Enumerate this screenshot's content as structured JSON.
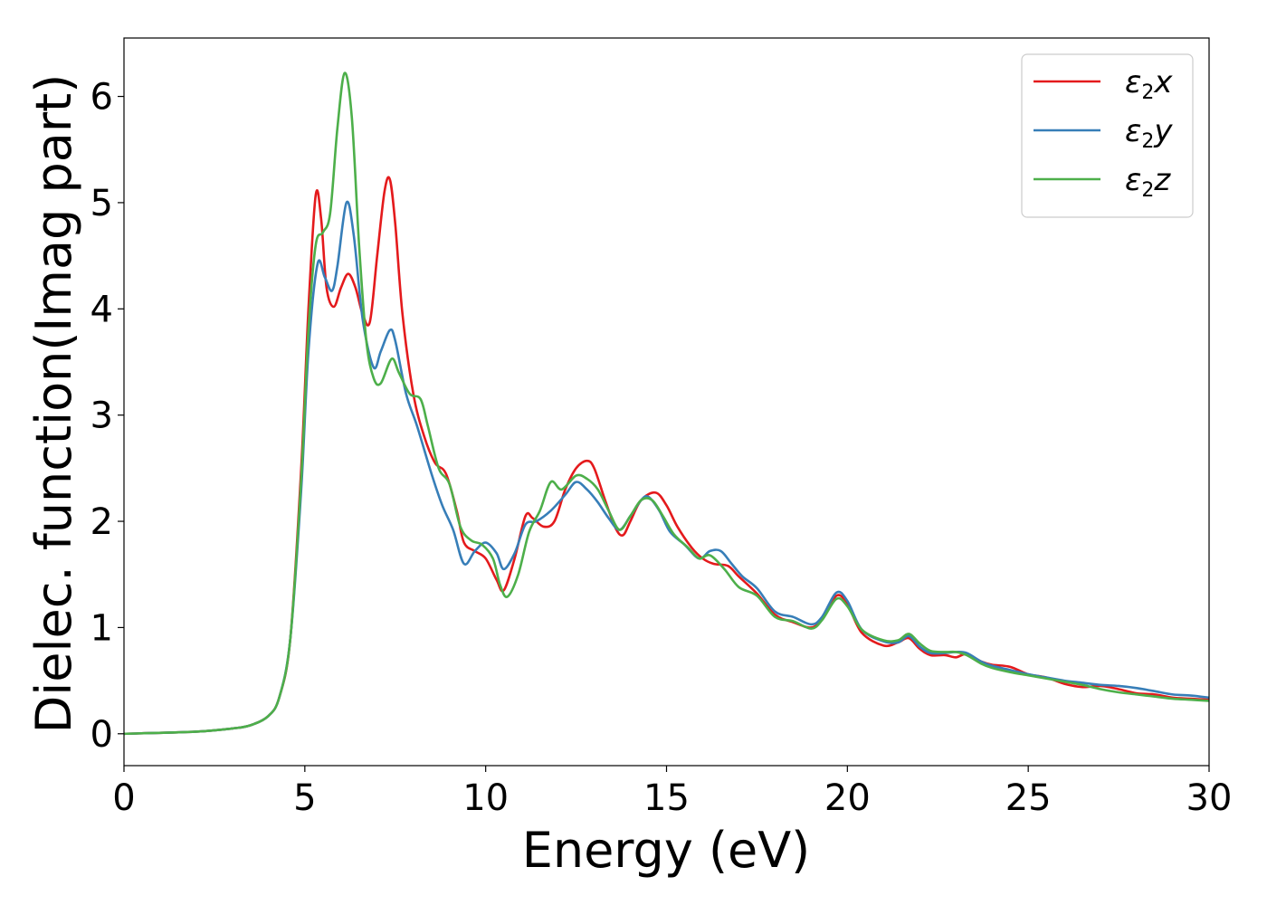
{
  "chart_data": {
    "type": "line",
    "xlabel": "Energy (eV)",
    "ylabel": "Dielec. function(Imag part)",
    "xlim": [
      0,
      30
    ],
    "ylim": [
      -0.3,
      6.55
    ],
    "xticks": [
      0,
      5,
      10,
      15,
      20,
      25,
      30
    ],
    "yticks": [
      0,
      1,
      2,
      3,
      4,
      5,
      6
    ],
    "grid": false,
    "legend_position": "top-right",
    "series": [
      {
        "name": "ε2x",
        "legend": {
          "symbol": "ε",
          "sub": "2",
          "axis": "x"
        },
        "color": "#e41a1c",
        "points": [
          [
            0,
            0
          ],
          [
            2,
            0.02
          ],
          [
            3,
            0.05
          ],
          [
            3.5,
            0.08
          ],
          [
            4,
            0.17
          ],
          [
            4.3,
            0.35
          ],
          [
            4.6,
            0.9
          ],
          [
            4.9,
            2.5
          ],
          [
            5.1,
            4.0
          ],
          [
            5.3,
            5.07
          ],
          [
            5.45,
            4.85
          ],
          [
            5.6,
            4.2
          ],
          [
            5.8,
            4.02
          ],
          [
            6.0,
            4.2
          ],
          [
            6.2,
            4.33
          ],
          [
            6.4,
            4.2
          ],
          [
            6.6,
            3.95
          ],
          [
            6.8,
            3.88
          ],
          [
            7.0,
            4.5
          ],
          [
            7.2,
            5.1
          ],
          [
            7.35,
            5.22
          ],
          [
            7.5,
            4.8
          ],
          [
            7.7,
            3.95
          ],
          [
            8.0,
            3.2
          ],
          [
            8.3,
            2.8
          ],
          [
            8.6,
            2.55
          ],
          [
            8.9,
            2.45
          ],
          [
            9.2,
            2.1
          ],
          [
            9.4,
            1.8
          ],
          [
            9.7,
            1.72
          ],
          [
            10.0,
            1.65
          ],
          [
            10.3,
            1.45
          ],
          [
            10.5,
            1.35
          ],
          [
            10.8,
            1.65
          ],
          [
            11.1,
            2.05
          ],
          [
            11.3,
            2.03
          ],
          [
            11.6,
            1.95
          ],
          [
            11.9,
            2.0
          ],
          [
            12.2,
            2.3
          ],
          [
            12.5,
            2.5
          ],
          [
            12.8,
            2.57
          ],
          [
            13.0,
            2.5
          ],
          [
            13.3,
            2.2
          ],
          [
            13.6,
            1.93
          ],
          [
            13.8,
            1.87
          ],
          [
            14.0,
            2.0
          ],
          [
            14.3,
            2.2
          ],
          [
            14.7,
            2.27
          ],
          [
            15.0,
            2.15
          ],
          [
            15.3,
            1.95
          ],
          [
            15.7,
            1.75
          ],
          [
            16.0,
            1.65
          ],
          [
            16.3,
            1.6
          ],
          [
            16.7,
            1.58
          ],
          [
            17.0,
            1.48
          ],
          [
            17.5,
            1.32
          ],
          [
            18.0,
            1.12
          ],
          [
            18.5,
            1.05
          ],
          [
            19.0,
            1.0
          ],
          [
            19.3,
            1.08
          ],
          [
            19.7,
            1.3
          ],
          [
            20.0,
            1.22
          ],
          [
            20.4,
            0.95
          ],
          [
            21.0,
            0.83
          ],
          [
            21.4,
            0.86
          ],
          [
            21.7,
            0.9
          ],
          [
            22.0,
            0.8
          ],
          [
            22.3,
            0.74
          ],
          [
            22.7,
            0.74
          ],
          [
            23.0,
            0.72
          ],
          [
            23.3,
            0.75
          ],
          [
            23.7,
            0.68
          ],
          [
            24.0,
            0.65
          ],
          [
            24.5,
            0.63
          ],
          [
            25.0,
            0.56
          ],
          [
            25.5,
            0.53
          ],
          [
            26.0,
            0.47
          ],
          [
            26.5,
            0.44
          ],
          [
            27.0,
            0.45
          ],
          [
            27.5,
            0.42
          ],
          [
            28.0,
            0.38
          ],
          [
            28.5,
            0.37
          ],
          [
            29.0,
            0.34
          ],
          [
            29.5,
            0.33
          ],
          [
            30.0,
            0.32
          ]
        ]
      },
      {
        "name": "ε2y",
        "legend": {
          "symbol": "ε",
          "sub": "2",
          "axis": "y"
        },
        "color": "#377eb8",
        "points": [
          [
            0,
            0
          ],
          [
            2,
            0.02
          ],
          [
            3,
            0.05
          ],
          [
            3.5,
            0.08
          ],
          [
            4,
            0.17
          ],
          [
            4.3,
            0.35
          ],
          [
            4.6,
            0.9
          ],
          [
            4.9,
            2.3
          ],
          [
            5.1,
            3.6
          ],
          [
            5.35,
            4.42
          ],
          [
            5.55,
            4.3
          ],
          [
            5.75,
            4.17
          ],
          [
            5.9,
            4.4
          ],
          [
            6.15,
            5.0
          ],
          [
            6.35,
            4.7
          ],
          [
            6.6,
            3.9
          ],
          [
            6.9,
            3.45
          ],
          [
            7.1,
            3.6
          ],
          [
            7.35,
            3.8
          ],
          [
            7.5,
            3.7
          ],
          [
            7.8,
            3.2
          ],
          [
            8.1,
            2.9
          ],
          [
            8.5,
            2.45
          ],
          [
            8.8,
            2.15
          ],
          [
            9.1,
            1.92
          ],
          [
            9.4,
            1.6
          ],
          [
            9.7,
            1.72
          ],
          [
            10.0,
            1.8
          ],
          [
            10.3,
            1.7
          ],
          [
            10.5,
            1.55
          ],
          [
            10.8,
            1.7
          ],
          [
            11.1,
            1.97
          ],
          [
            11.4,
            2.0
          ],
          [
            11.8,
            2.1
          ],
          [
            12.2,
            2.25
          ],
          [
            12.5,
            2.37
          ],
          [
            12.8,
            2.3
          ],
          [
            13.1,
            2.18
          ],
          [
            13.4,
            2.03
          ],
          [
            13.7,
            1.92
          ],
          [
            14.0,
            2.05
          ],
          [
            14.3,
            2.2
          ],
          [
            14.5,
            2.23
          ],
          [
            14.8,
            2.1
          ],
          [
            15.1,
            1.9
          ],
          [
            15.5,
            1.78
          ],
          [
            15.9,
            1.65
          ],
          [
            16.2,
            1.72
          ],
          [
            16.5,
            1.72
          ],
          [
            16.8,
            1.6
          ],
          [
            17.1,
            1.48
          ],
          [
            17.5,
            1.37
          ],
          [
            18.0,
            1.15
          ],
          [
            18.5,
            1.1
          ],
          [
            19.0,
            1.03
          ],
          [
            19.3,
            1.1
          ],
          [
            19.7,
            1.33
          ],
          [
            20.0,
            1.25
          ],
          [
            20.4,
            0.98
          ],
          [
            21.0,
            0.87
          ],
          [
            21.4,
            0.86
          ],
          [
            21.7,
            0.92
          ],
          [
            22.0,
            0.82
          ],
          [
            22.3,
            0.76
          ],
          [
            22.7,
            0.76
          ],
          [
            23.0,
            0.77
          ],
          [
            23.3,
            0.76
          ],
          [
            23.7,
            0.68
          ],
          [
            24.0,
            0.64
          ],
          [
            24.5,
            0.6
          ],
          [
            25.0,
            0.56
          ],
          [
            25.5,
            0.53
          ],
          [
            26.0,
            0.5
          ],
          [
            26.5,
            0.48
          ],
          [
            27.0,
            0.46
          ],
          [
            27.5,
            0.45
          ],
          [
            28.0,
            0.43
          ],
          [
            28.5,
            0.4
          ],
          [
            29.0,
            0.37
          ],
          [
            29.5,
            0.36
          ],
          [
            30.0,
            0.34
          ]
        ]
      },
      {
        "name": "ε2z",
        "legend": {
          "symbol": "ε",
          "sub": "2",
          "axis": "z"
        },
        "color": "#4daf4a",
        "points": [
          [
            0,
            0
          ],
          [
            2,
            0.02
          ],
          [
            3,
            0.05
          ],
          [
            3.5,
            0.08
          ],
          [
            4,
            0.17
          ],
          [
            4.3,
            0.35
          ],
          [
            4.6,
            0.9
          ],
          [
            4.9,
            2.4
          ],
          [
            5.1,
            3.8
          ],
          [
            5.3,
            4.6
          ],
          [
            5.5,
            4.72
          ],
          [
            5.7,
            4.9
          ],
          [
            5.9,
            5.7
          ],
          [
            6.1,
            6.22
          ],
          [
            6.3,
            5.8
          ],
          [
            6.5,
            4.6
          ],
          [
            6.7,
            3.7
          ],
          [
            6.9,
            3.35
          ],
          [
            7.1,
            3.3
          ],
          [
            7.4,
            3.53
          ],
          [
            7.6,
            3.4
          ],
          [
            7.9,
            3.2
          ],
          [
            8.2,
            3.15
          ],
          [
            8.4,
            2.9
          ],
          [
            8.7,
            2.5
          ],
          [
            9.0,
            2.35
          ],
          [
            9.3,
            1.95
          ],
          [
            9.6,
            1.82
          ],
          [
            9.9,
            1.78
          ],
          [
            10.2,
            1.65
          ],
          [
            10.4,
            1.4
          ],
          [
            10.6,
            1.29
          ],
          [
            10.9,
            1.5
          ],
          [
            11.2,
            1.9
          ],
          [
            11.5,
            2.1
          ],
          [
            11.8,
            2.37
          ],
          [
            12.1,
            2.3
          ],
          [
            12.5,
            2.43
          ],
          [
            12.8,
            2.4
          ],
          [
            13.1,
            2.3
          ],
          [
            13.4,
            2.1
          ],
          [
            13.7,
            1.92
          ],
          [
            14.0,
            2.05
          ],
          [
            14.3,
            2.2
          ],
          [
            14.6,
            2.2
          ],
          [
            14.9,
            2.05
          ],
          [
            15.2,
            1.88
          ],
          [
            15.6,
            1.75
          ],
          [
            15.9,
            1.65
          ],
          [
            16.2,
            1.68
          ],
          [
            16.6,
            1.55
          ],
          [
            17.0,
            1.38
          ],
          [
            17.5,
            1.3
          ],
          [
            18.0,
            1.1
          ],
          [
            18.5,
            1.06
          ],
          [
            19.0,
            0.99
          ],
          [
            19.3,
            1.07
          ],
          [
            19.7,
            1.27
          ],
          [
            20.0,
            1.2
          ],
          [
            20.4,
            0.98
          ],
          [
            21.0,
            0.88
          ],
          [
            21.4,
            0.88
          ],
          [
            21.7,
            0.94
          ],
          [
            22.0,
            0.85
          ],
          [
            22.3,
            0.78
          ],
          [
            22.7,
            0.77
          ],
          [
            23.0,
            0.77
          ],
          [
            23.3,
            0.74
          ],
          [
            23.7,
            0.66
          ],
          [
            24.0,
            0.62
          ],
          [
            24.5,
            0.58
          ],
          [
            25.0,
            0.55
          ],
          [
            25.5,
            0.52
          ],
          [
            26.0,
            0.49
          ],
          [
            26.5,
            0.46
          ],
          [
            27.0,
            0.42
          ],
          [
            27.5,
            0.39
          ],
          [
            28.0,
            0.37
          ],
          [
            28.5,
            0.35
          ],
          [
            29.0,
            0.33
          ],
          [
            29.5,
            0.32
          ],
          [
            30.0,
            0.31
          ]
        ]
      }
    ]
  }
}
